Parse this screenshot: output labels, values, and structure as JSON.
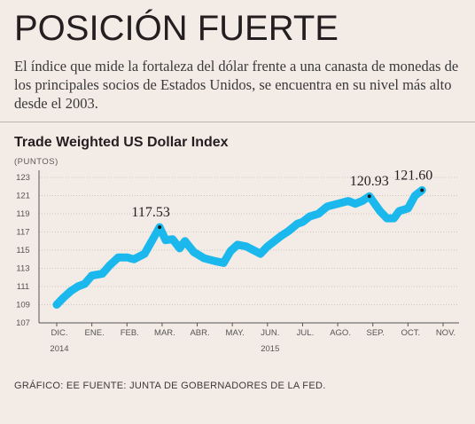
{
  "headline": "POSICIÓN FUERTE",
  "dek": "El índice que mide la fortaleza del dólar frente a una canasta de monedas de los principales socios de Estados Unidos, se encuentra en su nivel más alto desde el 2003.",
  "source": "GRÁFICO: EE FUENTE: JUNTA DE GOBERNADORES DE LA FED.",
  "colors": {
    "line": "#1ab8ec",
    "background": "#f3ebe6",
    "grid": "#cfc6c1"
  },
  "chart_data": {
    "type": "line",
    "title": "Trade Weighted US Dollar Index",
    "ylabel": "(PUNTOS)",
    "ylim": [
      107,
      123
    ],
    "y_ticks": [
      "107",
      "109",
      "111",
      "113",
      "115",
      "117",
      "119",
      "121",
      "123"
    ],
    "x_ticks": [
      {
        "label": "DIC.",
        "sub": "2014"
      },
      {
        "label": "ENE.",
        "sub": ""
      },
      {
        "label": "FEB.",
        "sub": ""
      },
      {
        "label": "MAR.",
        "sub": ""
      },
      {
        "label": "ABR.",
        "sub": ""
      },
      {
        "label": "MAY.",
        "sub": ""
      },
      {
        "label": "JUN.",
        "sub": "2015"
      },
      {
        "label": "JUL.",
        "sub": ""
      },
      {
        "label": "AGO.",
        "sub": ""
      },
      {
        "label": "SEP.",
        "sub": ""
      },
      {
        "label": "OCT.",
        "sub": ""
      },
      {
        "label": "NOV.",
        "sub": ""
      }
    ],
    "grid": "horizontal",
    "series": [
      {
        "values": [
          [
            0.0,
            109.0
          ],
          [
            0.2,
            109.8
          ],
          [
            0.4,
            110.5
          ],
          [
            0.6,
            111.0
          ],
          [
            0.8,
            111.3
          ],
          [
            1.0,
            112.2
          ],
          [
            1.3,
            112.4
          ],
          [
            1.5,
            113.3
          ],
          [
            1.75,
            114.2
          ],
          [
            2.0,
            114.2
          ],
          [
            2.2,
            114.0
          ],
          [
            2.5,
            114.6
          ],
          [
            2.75,
            116.3
          ],
          [
            2.93,
            117.53
          ],
          [
            3.1,
            116.1
          ],
          [
            3.3,
            116.2
          ],
          [
            3.5,
            115.2
          ],
          [
            3.65,
            116.0
          ],
          [
            3.9,
            114.8
          ],
          [
            4.2,
            114.1
          ],
          [
            4.5,
            113.8
          ],
          [
            4.75,
            113.6
          ],
          [
            4.95,
            114.9
          ],
          [
            5.15,
            115.6
          ],
          [
            5.4,
            115.4
          ],
          [
            5.8,
            114.6
          ],
          [
            6.0,
            115.4
          ],
          [
            6.4,
            116.6
          ],
          [
            6.6,
            117.1
          ],
          [
            6.85,
            117.9
          ],
          [
            7.0,
            118.1
          ],
          [
            7.2,
            118.7
          ],
          [
            7.45,
            119.0
          ],
          [
            7.7,
            119.8
          ],
          [
            8.0,
            120.1
          ],
          [
            8.3,
            120.4
          ],
          [
            8.5,
            120.1
          ],
          [
            8.7,
            120.4
          ],
          [
            8.9,
            120.93
          ],
          [
            9.2,
            119.3
          ],
          [
            9.4,
            118.5
          ],
          [
            9.6,
            118.5
          ],
          [
            9.75,
            119.3
          ],
          [
            10.0,
            119.6
          ],
          [
            10.2,
            121.0
          ],
          [
            10.4,
            121.6
          ]
        ]
      }
    ],
    "annotations": [
      {
        "label": "117.53",
        "x": 2.93,
        "y": 117.53,
        "placement": "above-left"
      },
      {
        "label": "120.93",
        "x": 8.9,
        "y": 120.93,
        "placement": "above"
      },
      {
        "label": "121.60",
        "x": 10.4,
        "y": 121.6,
        "placement": "above-left"
      }
    ]
  }
}
